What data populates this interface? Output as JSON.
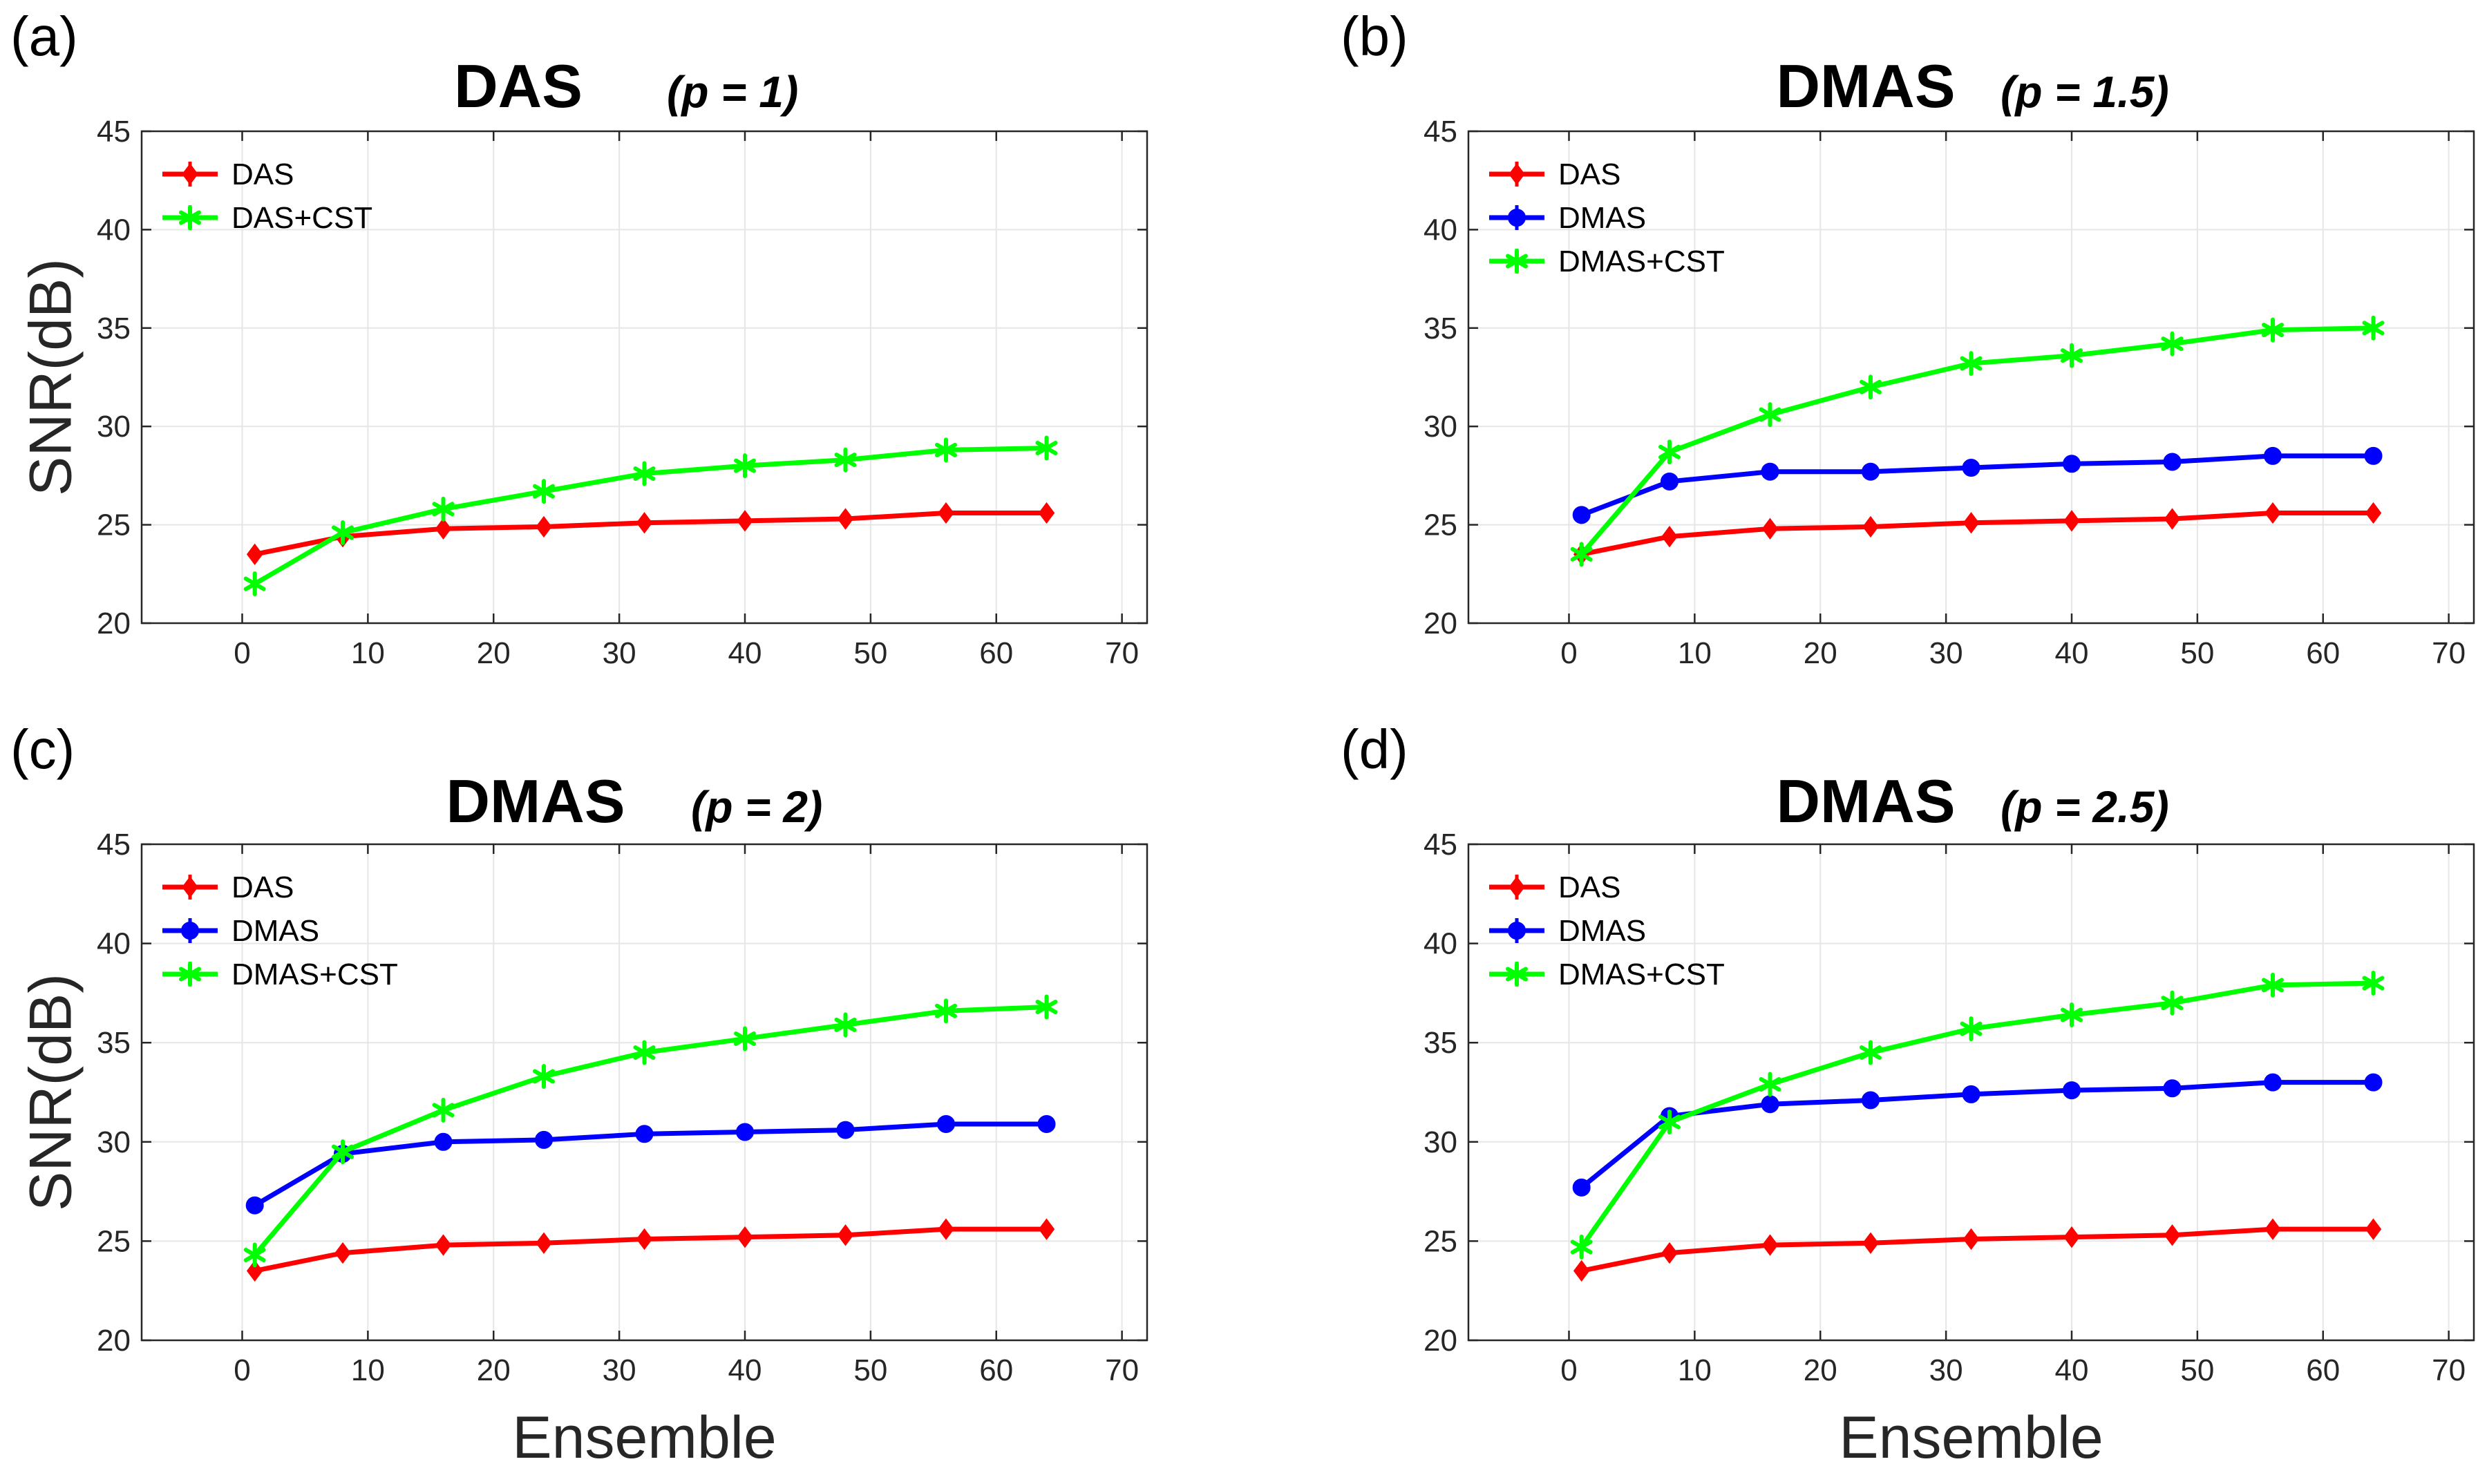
{
  "figure": {
    "ylabel": "SNR(dB)",
    "xlabel": "Ensemble",
    "colors": {
      "DAS": "#ff0000",
      "DMAS": "#0000ff",
      "CST": "#00ff00"
    }
  },
  "chart_data": [
    {
      "type": "line",
      "panel_label": "(a)",
      "title": "DAS",
      "subtitle": "(p = 1)",
      "xlabel": "",
      "ylabel": "SNR(dB)",
      "xlim": [
        -8,
        72
      ],
      "ylim": [
        20,
        45
      ],
      "xticks": [
        0,
        10,
        20,
        30,
        40,
        50,
        60,
        70
      ],
      "yticks": [
        20,
        25,
        30,
        35,
        40,
        45
      ],
      "grid": true,
      "legend_position": "top-left",
      "x": [
        1,
        8,
        16,
        24,
        32,
        40,
        48,
        56,
        64
      ],
      "series": [
        {
          "name": "DAS",
          "color": "#ff0000",
          "marker": "diamond",
          "values": [
            23.5,
            24.4,
            24.8,
            24.9,
            25.1,
            25.2,
            25.3,
            25.6,
            25.6
          ]
        },
        {
          "name": "DAS+CST",
          "color": "#00ff00",
          "marker": "star",
          "values": [
            22.0,
            24.6,
            25.8,
            26.7,
            27.6,
            28.0,
            28.3,
            28.8,
            28.9
          ]
        }
      ]
    },
    {
      "type": "line",
      "panel_label": "(b)",
      "title": "DMAS",
      "subtitle": "(p = 1.5)",
      "xlabel": "",
      "ylabel": "",
      "xlim": [
        -8,
        72
      ],
      "ylim": [
        20,
        45
      ],
      "xticks": [
        0,
        10,
        20,
        30,
        40,
        50,
        60,
        70
      ],
      "yticks": [
        20,
        25,
        30,
        35,
        40,
        45
      ],
      "grid": true,
      "legend_position": "top-left",
      "x": [
        1,
        8,
        16,
        24,
        32,
        40,
        48,
        56,
        64
      ],
      "series": [
        {
          "name": "DAS",
          "color": "#ff0000",
          "marker": "diamond",
          "values": [
            23.5,
            24.4,
            24.8,
            24.9,
            25.1,
            25.2,
            25.3,
            25.6,
            25.6
          ]
        },
        {
          "name": "DMAS",
          "color": "#0000ff",
          "marker": "circle",
          "values": [
            25.5,
            27.2,
            27.7,
            27.7,
            27.9,
            28.1,
            28.2,
            28.5,
            28.5
          ]
        },
        {
          "name": "DMAS+CST",
          "color": "#00ff00",
          "marker": "star",
          "values": [
            23.5,
            28.7,
            30.6,
            32.0,
            33.2,
            33.6,
            34.2,
            34.9,
            35.0
          ]
        }
      ]
    },
    {
      "type": "line",
      "panel_label": "(c)",
      "title": "DMAS",
      "subtitle": "(p = 2)",
      "xlabel": "Ensemble",
      "ylabel": "SNR(dB)",
      "xlim": [
        -8,
        72
      ],
      "ylim": [
        20,
        45
      ],
      "xticks": [
        0,
        10,
        20,
        30,
        40,
        50,
        60,
        70
      ],
      "yticks": [
        20,
        25,
        30,
        35,
        40,
        45
      ],
      "grid": true,
      "legend_position": "top-left",
      "x": [
        1,
        8,
        16,
        24,
        32,
        40,
        48,
        56,
        64
      ],
      "series": [
        {
          "name": "DAS",
          "color": "#ff0000",
          "marker": "diamond",
          "values": [
            23.5,
            24.4,
            24.8,
            24.9,
            25.1,
            25.2,
            25.3,
            25.6,
            25.6
          ]
        },
        {
          "name": "DMAS",
          "color": "#0000ff",
          "marker": "circle",
          "values": [
            26.8,
            29.4,
            30.0,
            30.1,
            30.4,
            30.5,
            30.6,
            30.9,
            30.9
          ]
        },
        {
          "name": "DMAS+CST",
          "color": "#00ff00",
          "marker": "star",
          "values": [
            24.3,
            29.5,
            31.6,
            33.3,
            34.5,
            35.2,
            35.9,
            36.6,
            36.8
          ]
        }
      ]
    },
    {
      "type": "line",
      "panel_label": "(d)",
      "title": "DMAS",
      "subtitle": "(p = 2.5)",
      "xlabel": "Ensemble",
      "ylabel": "",
      "xlim": [
        -8,
        72
      ],
      "ylim": [
        20,
        45
      ],
      "xticks": [
        0,
        10,
        20,
        30,
        40,
        50,
        60,
        70
      ],
      "yticks": [
        20,
        25,
        30,
        35,
        40,
        45
      ],
      "grid": true,
      "legend_position": "top-left",
      "x": [
        1,
        8,
        16,
        24,
        32,
        40,
        48,
        56,
        64
      ],
      "series": [
        {
          "name": "DAS",
          "color": "#ff0000",
          "marker": "diamond",
          "values": [
            23.5,
            24.4,
            24.8,
            24.9,
            25.1,
            25.2,
            25.3,
            25.6,
            25.6
          ]
        },
        {
          "name": "DMAS",
          "color": "#0000ff",
          "marker": "circle",
          "values": [
            27.7,
            31.3,
            31.9,
            32.1,
            32.4,
            32.6,
            32.7,
            33.0,
            33.0
          ]
        },
        {
          "name": "DMAS+CST",
          "color": "#00ff00",
          "marker": "star",
          "values": [
            24.7,
            31.0,
            32.9,
            34.5,
            35.7,
            36.4,
            37.0,
            37.9,
            38.0
          ]
        }
      ]
    }
  ]
}
